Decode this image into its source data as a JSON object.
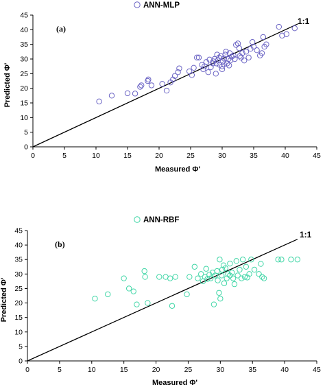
{
  "chart_data": [
    {
      "type": "scatter",
      "panel_label": "(a)",
      "legend": "ANN-MLP",
      "marker_color": "#6a63c4",
      "xlabel": "Measured Φ'",
      "ylabel": "Predicted Φ'",
      "xlim": [
        0,
        45
      ],
      "ylim": [
        0,
        45
      ],
      "xticks": [
        "0",
        "5",
        "10",
        "15",
        "20",
        "25",
        "30",
        "35",
        "40",
        "45"
      ],
      "yticks": [
        "0",
        "5",
        "10",
        "15",
        "20",
        "25",
        "30",
        "35",
        "40",
        "45"
      ],
      "reference_line": {
        "label": "1:1",
        "from": [
          0,
          0
        ],
        "to": [
          42,
          42
        ]
      },
      "points": [
        [
          10.5,
          15.5
        ],
        [
          12.5,
          17.5
        ],
        [
          15,
          18.3
        ],
        [
          16.2,
          18.2
        ],
        [
          17,
          20.5
        ],
        [
          17.2,
          21
        ],
        [
          18.2,
          22.5
        ],
        [
          18.3,
          23
        ],
        [
          18.8,
          21
        ],
        [
          20.5,
          21.5
        ],
        [
          21.2,
          19.2
        ],
        [
          21.8,
          22
        ],
        [
          22.2,
          23
        ],
        [
          22.5,
          24.2
        ],
        [
          23,
          25.5
        ],
        [
          23.2,
          26.8
        ],
        [
          24.8,
          25.8
        ],
        [
          25.2,
          24.5
        ],
        [
          25.5,
          27
        ],
        [
          26,
          30.5
        ],
        [
          26.3,
          30.5
        ],
        [
          26.8,
          28
        ],
        [
          27,
          26.5
        ],
        [
          27.2,
          27.5
        ],
        [
          27.5,
          29
        ],
        [
          27.8,
          25.5
        ],
        [
          28,
          29.8
        ],
        [
          28.2,
          27.2
        ],
        [
          28.5,
          28.5
        ],
        [
          28.6,
          29.2
        ],
        [
          28.8,
          30
        ],
        [
          29,
          25
        ],
        [
          29.1,
          28.5
        ],
        [
          29.3,
          29.5
        ],
        [
          29.5,
          30.5
        ],
        [
          29.6,
          28
        ],
        [
          29.8,
          31
        ],
        [
          30,
          26.5
        ],
        [
          30,
          27.5
        ],
        [
          30.1,
          29.2
        ],
        [
          30.3,
          30.2
        ],
        [
          30.5,
          31.5
        ],
        [
          30.6,
          32.5
        ],
        [
          30.8,
          28.5
        ],
        [
          31,
          30
        ],
        [
          31.2,
          32
        ],
        [
          31.3,
          29.5
        ],
        [
          31.5,
          30.8
        ],
        [
          31.8,
          31.2
        ],
        [
          32,
          30
        ],
        [
          32.2,
          34.8
        ],
        [
          32.5,
          35.3
        ],
        [
          32.8,
          31
        ],
        [
          33,
          30.5
        ],
        [
          33.2,
          32
        ],
        [
          33.5,
          29.5
        ],
        [
          33.8,
          32.5
        ],
        [
          34.2,
          30.5
        ],
        [
          34.5,
          33.5
        ],
        [
          35,
          34.2
        ],
        [
          35.5,
          33
        ],
        [
          36,
          31.2
        ],
        [
          36.3,
          32
        ],
        [
          36.5,
          37.5
        ],
        [
          36.7,
          34.2
        ],
        [
          37,
          35
        ],
        [
          39,
          41
        ],
        [
          39.5,
          38
        ],
        [
          40.2,
          38.5
        ],
        [
          41.5,
          40.5
        ],
        [
          30.3,
          28.2
        ],
        [
          31.1,
          27.8
        ],
        [
          32.7,
          33.7
        ],
        [
          29.2,
          31.5
        ],
        [
          34.8,
          35.8
        ]
      ]
    },
    {
      "type": "scatter",
      "panel_label": "(b)",
      "legend": "ANN-RBF",
      "marker_color": "#3fd6a6",
      "xlabel": "Measured Φ'",
      "ylabel": "Predicted Φ'",
      "xlim": [
        0,
        45
      ],
      "ylim": [
        0,
        45
      ],
      "xticks": [
        "0",
        "5",
        "10",
        "15",
        "20",
        "25",
        "30",
        "35",
        "40",
        "45"
      ],
      "yticks": [
        "0",
        "5",
        "10",
        "15",
        "20",
        "25",
        "30",
        "35",
        "40",
        "45"
      ],
      "reference_line": {
        "label": "1:1",
        "from": [
          0,
          0
        ],
        "to": [
          42,
          42
        ]
      },
      "points": [
        [
          10.5,
          21.5
        ],
        [
          12.5,
          23
        ],
        [
          15,
          28.5
        ],
        [
          15.8,
          25
        ],
        [
          16.5,
          24
        ],
        [
          17,
          19.5
        ],
        [
          18.2,
          31
        ],
        [
          18.3,
          29
        ],
        [
          18.7,
          20
        ],
        [
          20.5,
          29
        ],
        [
          21.5,
          29
        ],
        [
          22.2,
          28.5
        ],
        [
          22.5,
          19
        ],
        [
          23,
          29
        ],
        [
          24.8,
          23
        ],
        [
          25.2,
          29
        ],
        [
          26,
          32.5
        ],
        [
          26.5,
          28.5
        ],
        [
          27,
          30
        ],
        [
          27.3,
          27.5
        ],
        [
          27.6,
          29
        ],
        [
          28,
          28.3
        ],
        [
          28.3,
          29.8
        ],
        [
          28.5,
          28.5
        ],
        [
          28.8,
          30.5
        ],
        [
          29,
          19.5
        ],
        [
          29.2,
          29.5
        ],
        [
          29.5,
          31
        ],
        [
          29.8,
          23.5
        ],
        [
          29.9,
          35
        ],
        [
          30,
          21.5
        ],
        [
          30.2,
          29.5
        ],
        [
          30.3,
          31.5
        ],
        [
          30.5,
          33
        ],
        [
          30.8,
          32
        ],
        [
          31,
          28.5
        ],
        [
          31.2,
          30
        ],
        [
          31.5,
          29.5
        ],
        [
          31.8,
          30.5
        ],
        [
          32,
          28.5
        ],
        [
          32.2,
          26.5
        ],
        [
          32.5,
          34.5
        ],
        [
          32.7,
          29.5
        ],
        [
          33,
          31.5
        ],
        [
          33.3,
          28.5
        ],
        [
          33.5,
          35
        ],
        [
          33.8,
          29
        ],
        [
          34,
          32.5
        ],
        [
          34.5,
          30
        ],
        [
          34.8,
          35
        ],
        [
          35.3,
          31.5
        ],
        [
          36,
          30
        ],
        [
          36.3,
          33.5
        ],
        [
          36.5,
          29
        ],
        [
          36.8,
          28.5
        ],
        [
          39,
          35
        ],
        [
          39.5,
          35
        ],
        [
          41,
          35
        ],
        [
          42,
          35
        ],
        [
          27.8,
          31.8
        ],
        [
          29.6,
          27.8
        ],
        [
          30.6,
          26.8
        ],
        [
          31.5,
          33.6
        ],
        [
          34.2,
          28.8
        ]
      ]
    }
  ]
}
